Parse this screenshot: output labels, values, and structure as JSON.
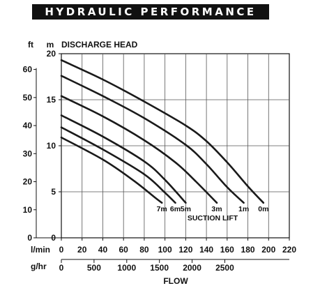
{
  "banner_title": "HYDRAULIC PERFORMANCE",
  "chart_data": {
    "type": "line",
    "title": "DISCHARGE HEAD",
    "y_units": [
      "ft",
      "m"
    ],
    "y_m_ticks": [
      0,
      5,
      10,
      15,
      20
    ],
    "y_ft_ticks": [
      0,
      10,
      20,
      30,
      40,
      50,
      60
    ],
    "xlabel": "FLOW",
    "x_lmin_label": "l/min",
    "x_lmin_ticks": [
      0,
      20,
      40,
      60,
      80,
      100,
      120,
      140,
      160,
      180,
      200,
      220
    ],
    "x_ghr_label": "g/hr",
    "x_ghr_ticks": [
      0,
      500,
      1000,
      1500,
      2000,
      2500
    ],
    "xlim": [
      0,
      220
    ],
    "ylim": [
      0,
      20
    ],
    "legend_title": "SUCTION LIFT",
    "grid": true,
    "series": [
      {
        "name": "0m",
        "x": [
          0,
          40,
          80,
          120,
          140,
          160,
          180,
          195
        ],
        "y": [
          19.3,
          17.2,
          14.8,
          12.2,
          10.5,
          8.2,
          5.6,
          3.8
        ]
      },
      {
        "name": "1m",
        "x": [
          0,
          40,
          80,
          120,
          140,
          160,
          176
        ],
        "y": [
          17.6,
          15.4,
          13.0,
          10.1,
          8.0,
          5.5,
          3.8
        ]
      },
      {
        "name": "3m",
        "x": [
          0,
          40,
          80,
          110,
          130,
          150
        ],
        "y": [
          15.4,
          13.2,
          10.6,
          8.2,
          6.1,
          3.8
        ]
      },
      {
        "name": "5m",
        "x": [
          0,
          40,
          80,
          100,
          120
        ],
        "y": [
          13.3,
          11.0,
          8.3,
          6.3,
          3.8
        ]
      },
      {
        "name": "6m",
        "x": [
          0,
          40,
          80,
          100,
          110
        ],
        "y": [
          12.0,
          9.6,
          6.9,
          4.9,
          3.8
        ]
      },
      {
        "name": "7m",
        "x": [
          0,
          40,
          70,
          90,
          97
        ],
        "y": [
          10.9,
          8.5,
          6.2,
          4.4,
          3.8
        ]
      }
    ]
  }
}
